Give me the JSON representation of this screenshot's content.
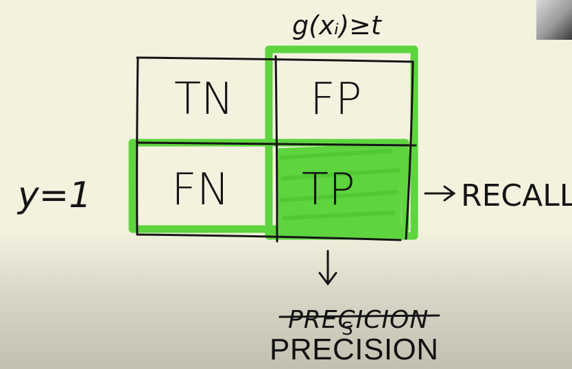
{
  "condition_label": "g(xᵢ)≥t",
  "row_label": "y=1",
  "cells": {
    "top_left": "TN",
    "top_right": "FP",
    "bottom_left": "FN",
    "bottom_right": "TP"
  },
  "recall_label": "RECALL",
  "precision_misspelled": "PRECICION",
  "precision_correction_letter": "S",
  "precision_typed": "PRECISION",
  "colors": {
    "highlight_green": "#5ed43f",
    "ink": "#141414",
    "paper": "#f4f2df"
  }
}
